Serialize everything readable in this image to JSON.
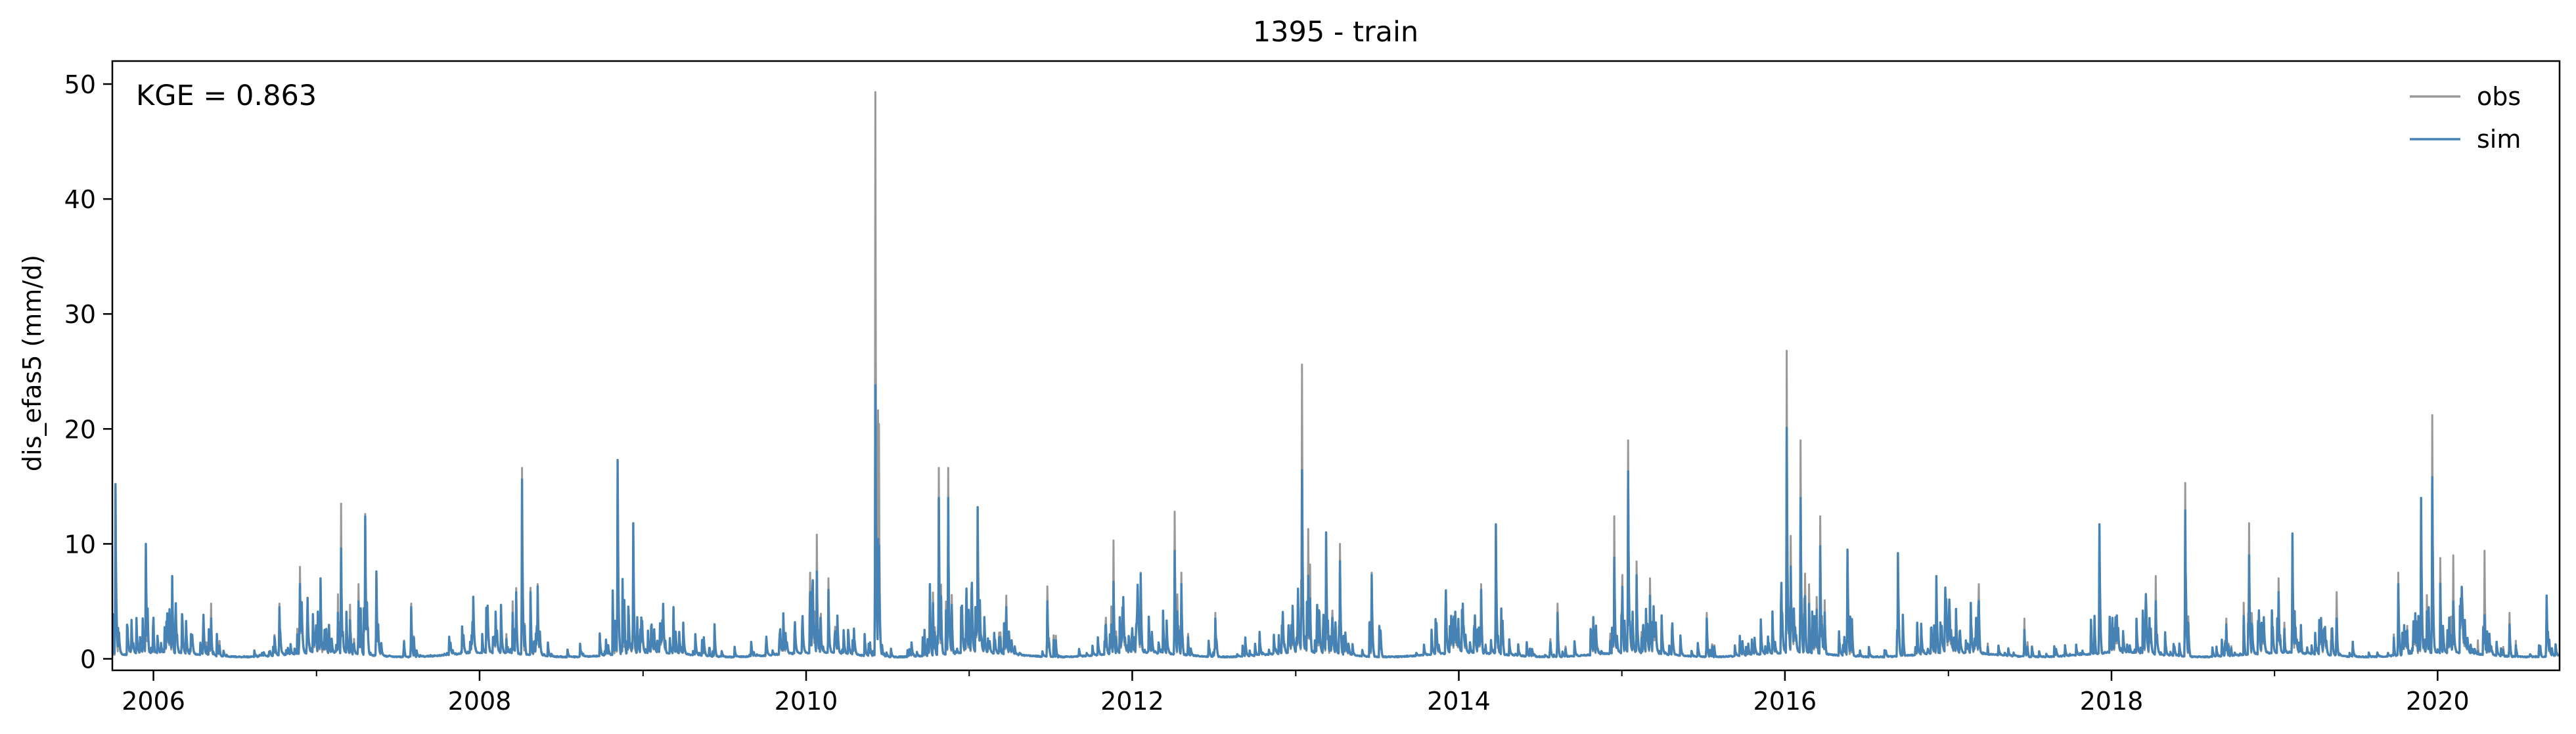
{
  "chart_data": {
    "type": "line",
    "title": "1395 - train",
    "xlabel": "",
    "ylabel": "dis_efas5 (mm/d)",
    "xlim": [
      "2005-10-01",
      "2020-09-30"
    ],
    "ylim": [
      -1,
      52
    ],
    "x_ticks": [
      "2006",
      "2008",
      "2010",
      "2012",
      "2014",
      "2016",
      "2018",
      "2020"
    ],
    "y_ticks": [
      "0",
      "10",
      "20",
      "30",
      "40",
      "50"
    ],
    "grid": false,
    "legend_position": "top-right",
    "annotation": "KGE = 0.863",
    "series": [
      {
        "name": "obs",
        "color": "#999999",
        "peaks": [
          [
            "2005-10-08",
            15.0
          ],
          [
            "2005-12-15",
            10.0
          ],
          [
            "2006-02-12",
            7.2
          ],
          [
            "2006-05-10",
            4.8
          ],
          [
            "2006-10-10",
            4.8
          ],
          [
            "2006-11-25",
            8.0
          ],
          [
            "2007-01-10",
            7.0
          ],
          [
            "2007-02-25",
            13.5
          ],
          [
            "2007-04-05",
            6.5
          ],
          [
            "2007-04-20",
            12.6
          ],
          [
            "2007-05-15",
            7.6
          ],
          [
            "2007-08-01",
            4.8
          ],
          [
            "2008-03-15",
            5.0
          ],
          [
            "2008-04-05",
            16.6
          ],
          [
            "2008-05-10",
            6.5
          ],
          [
            "2008-11-05",
            17.0
          ],
          [
            "2008-12-10",
            11.8
          ],
          [
            "2009-03-10",
            4.5
          ],
          [
            "2009-06-10",
            3.0
          ],
          [
            "2010-01-10",
            7.5
          ],
          [
            "2010-01-25",
            10.8
          ],
          [
            "2010-02-20",
            7.0
          ],
          [
            "2010-06-05",
            49.3
          ],
          [
            "2010-10-05",
            6.5
          ],
          [
            "2010-10-25",
            16.6
          ],
          [
            "2010-11-15",
            16.6
          ],
          [
            "2011-01-20",
            13.0
          ],
          [
            "2011-03-25",
            5.5
          ],
          [
            "2011-06-25",
            6.3
          ],
          [
            "2011-11-20",
            10.3
          ],
          [
            "2012-01-20",
            7.5
          ],
          [
            "2012-04-05",
            12.8
          ],
          [
            "2012-04-20",
            7.5
          ],
          [
            "2012-07-05",
            4.0
          ],
          [
            "2013-01-15",
            25.6
          ],
          [
            "2013-03-10",
            11.0
          ],
          [
            "2013-04-10",
            10.0
          ],
          [
            "2013-06-20",
            7.5
          ],
          [
            "2014-02-20",
            6.5
          ],
          [
            "2014-03-25",
            11.6
          ],
          [
            "2014-08-10",
            4.8
          ],
          [
            "2014-12-15",
            12.4
          ],
          [
            "2015-01-15",
            19.0
          ],
          [
            "2015-03-05",
            7.0
          ],
          [
            "2015-07-10",
            4.0
          ],
          [
            "2016-01-05",
            26.8
          ],
          [
            "2016-02-05",
            19.0
          ],
          [
            "2016-03-20",
            12.4
          ],
          [
            "2016-05-20",
            9.5
          ],
          [
            "2016-09-10",
            9.0
          ],
          [
            "2016-12-05",
            7.0
          ],
          [
            "2017-03-10",
            6.5
          ],
          [
            "2017-06-20",
            3.5
          ],
          [
            "2017-12-05",
            11.6
          ],
          [
            "2018-04-10",
            7.2
          ],
          [
            "2018-06-15",
            15.3
          ],
          [
            "2018-09-15",
            3.5
          ],
          [
            "2018-11-05",
            11.8
          ],
          [
            "2019-01-10",
            7.0
          ],
          [
            "2019-02-10",
            10.8
          ],
          [
            "2019-05-20",
            5.8
          ],
          [
            "2019-10-05",
            7.5
          ],
          [
            "2019-11-25",
            14.0
          ],
          [
            "2019-12-20",
            21.2
          ],
          [
            "2020-02-05",
            9.0
          ],
          [
            "2020-04-15",
            9.4
          ],
          [
            "2020-06-10",
            4.0
          ],
          [
            "2020-09-01",
            5.5
          ]
        ]
      },
      {
        "name": "sim",
        "color": "#4682b4",
        "peaks": [
          [
            "2005-10-08",
            15.2
          ],
          [
            "2005-12-15",
            10.0
          ],
          [
            "2006-02-12",
            7.2
          ],
          [
            "2006-05-10",
            3.5
          ],
          [
            "2006-10-10",
            4.5
          ],
          [
            "2006-11-25",
            6.5
          ],
          [
            "2007-01-10",
            7.0
          ],
          [
            "2007-02-25",
            9.6
          ],
          [
            "2007-04-05",
            5.0
          ],
          [
            "2007-04-20",
            12.4
          ],
          [
            "2007-05-15",
            7.6
          ],
          [
            "2007-08-01",
            4.5
          ],
          [
            "2008-03-15",
            4.0
          ],
          [
            "2008-04-05",
            15.6
          ],
          [
            "2008-05-10",
            6.3
          ],
          [
            "2008-11-05",
            17.3
          ],
          [
            "2008-12-10",
            11.8
          ],
          [
            "2009-03-10",
            4.5
          ],
          [
            "2009-06-10",
            3.0
          ],
          [
            "2010-01-10",
            5.8
          ],
          [
            "2010-01-25",
            7.6
          ],
          [
            "2010-02-20",
            6.0
          ],
          [
            "2010-06-05",
            23.8
          ],
          [
            "2010-10-05",
            6.5
          ],
          [
            "2010-10-25",
            14.0
          ],
          [
            "2010-11-15",
            14.0
          ],
          [
            "2011-01-20",
            13.2
          ],
          [
            "2011-03-25",
            4.5
          ],
          [
            "2011-06-25",
            5.0
          ],
          [
            "2011-11-20",
            6.7
          ],
          [
            "2012-01-20",
            7.4
          ],
          [
            "2012-04-05",
            9.4
          ],
          [
            "2012-04-20",
            6.5
          ],
          [
            "2012-07-05",
            3.5
          ],
          [
            "2013-01-15",
            16.4
          ],
          [
            "2013-03-10",
            11.0
          ],
          [
            "2013-04-10",
            8.5
          ],
          [
            "2013-06-20",
            7.3
          ],
          [
            "2014-02-20",
            6.0
          ],
          [
            "2014-03-25",
            11.7
          ],
          [
            "2014-08-10",
            4.0
          ],
          [
            "2014-12-15",
            8.8
          ],
          [
            "2015-01-15",
            16.3
          ],
          [
            "2015-03-05",
            5.5
          ],
          [
            "2015-07-10",
            3.5
          ],
          [
            "2016-01-05",
            20.1
          ],
          [
            "2016-02-05",
            14.0
          ],
          [
            "2016-03-20",
            9.8
          ],
          [
            "2016-05-20",
            9.5
          ],
          [
            "2016-09-10",
            9.2
          ],
          [
            "2016-12-05",
            7.2
          ],
          [
            "2017-03-10",
            5.0
          ],
          [
            "2017-06-20",
            2.5
          ],
          [
            "2017-12-05",
            11.7
          ],
          [
            "2018-04-10",
            5.0
          ],
          [
            "2018-06-15",
            12.9
          ],
          [
            "2018-09-15",
            3.0
          ],
          [
            "2018-11-05",
            9.0
          ],
          [
            "2019-01-10",
            5.8
          ],
          [
            "2019-02-10",
            10.9
          ],
          [
            "2019-05-20",
            3.5
          ],
          [
            "2019-10-05",
            6.5
          ],
          [
            "2019-11-25",
            14.0
          ],
          [
            "2019-12-20",
            15.8
          ],
          [
            "2020-02-05",
            5.0
          ],
          [
            "2020-04-15",
            3.8
          ],
          [
            "2020-06-10",
            3.0
          ],
          [
            "2020-09-01",
            5.5
          ]
        ]
      }
    ]
  }
}
